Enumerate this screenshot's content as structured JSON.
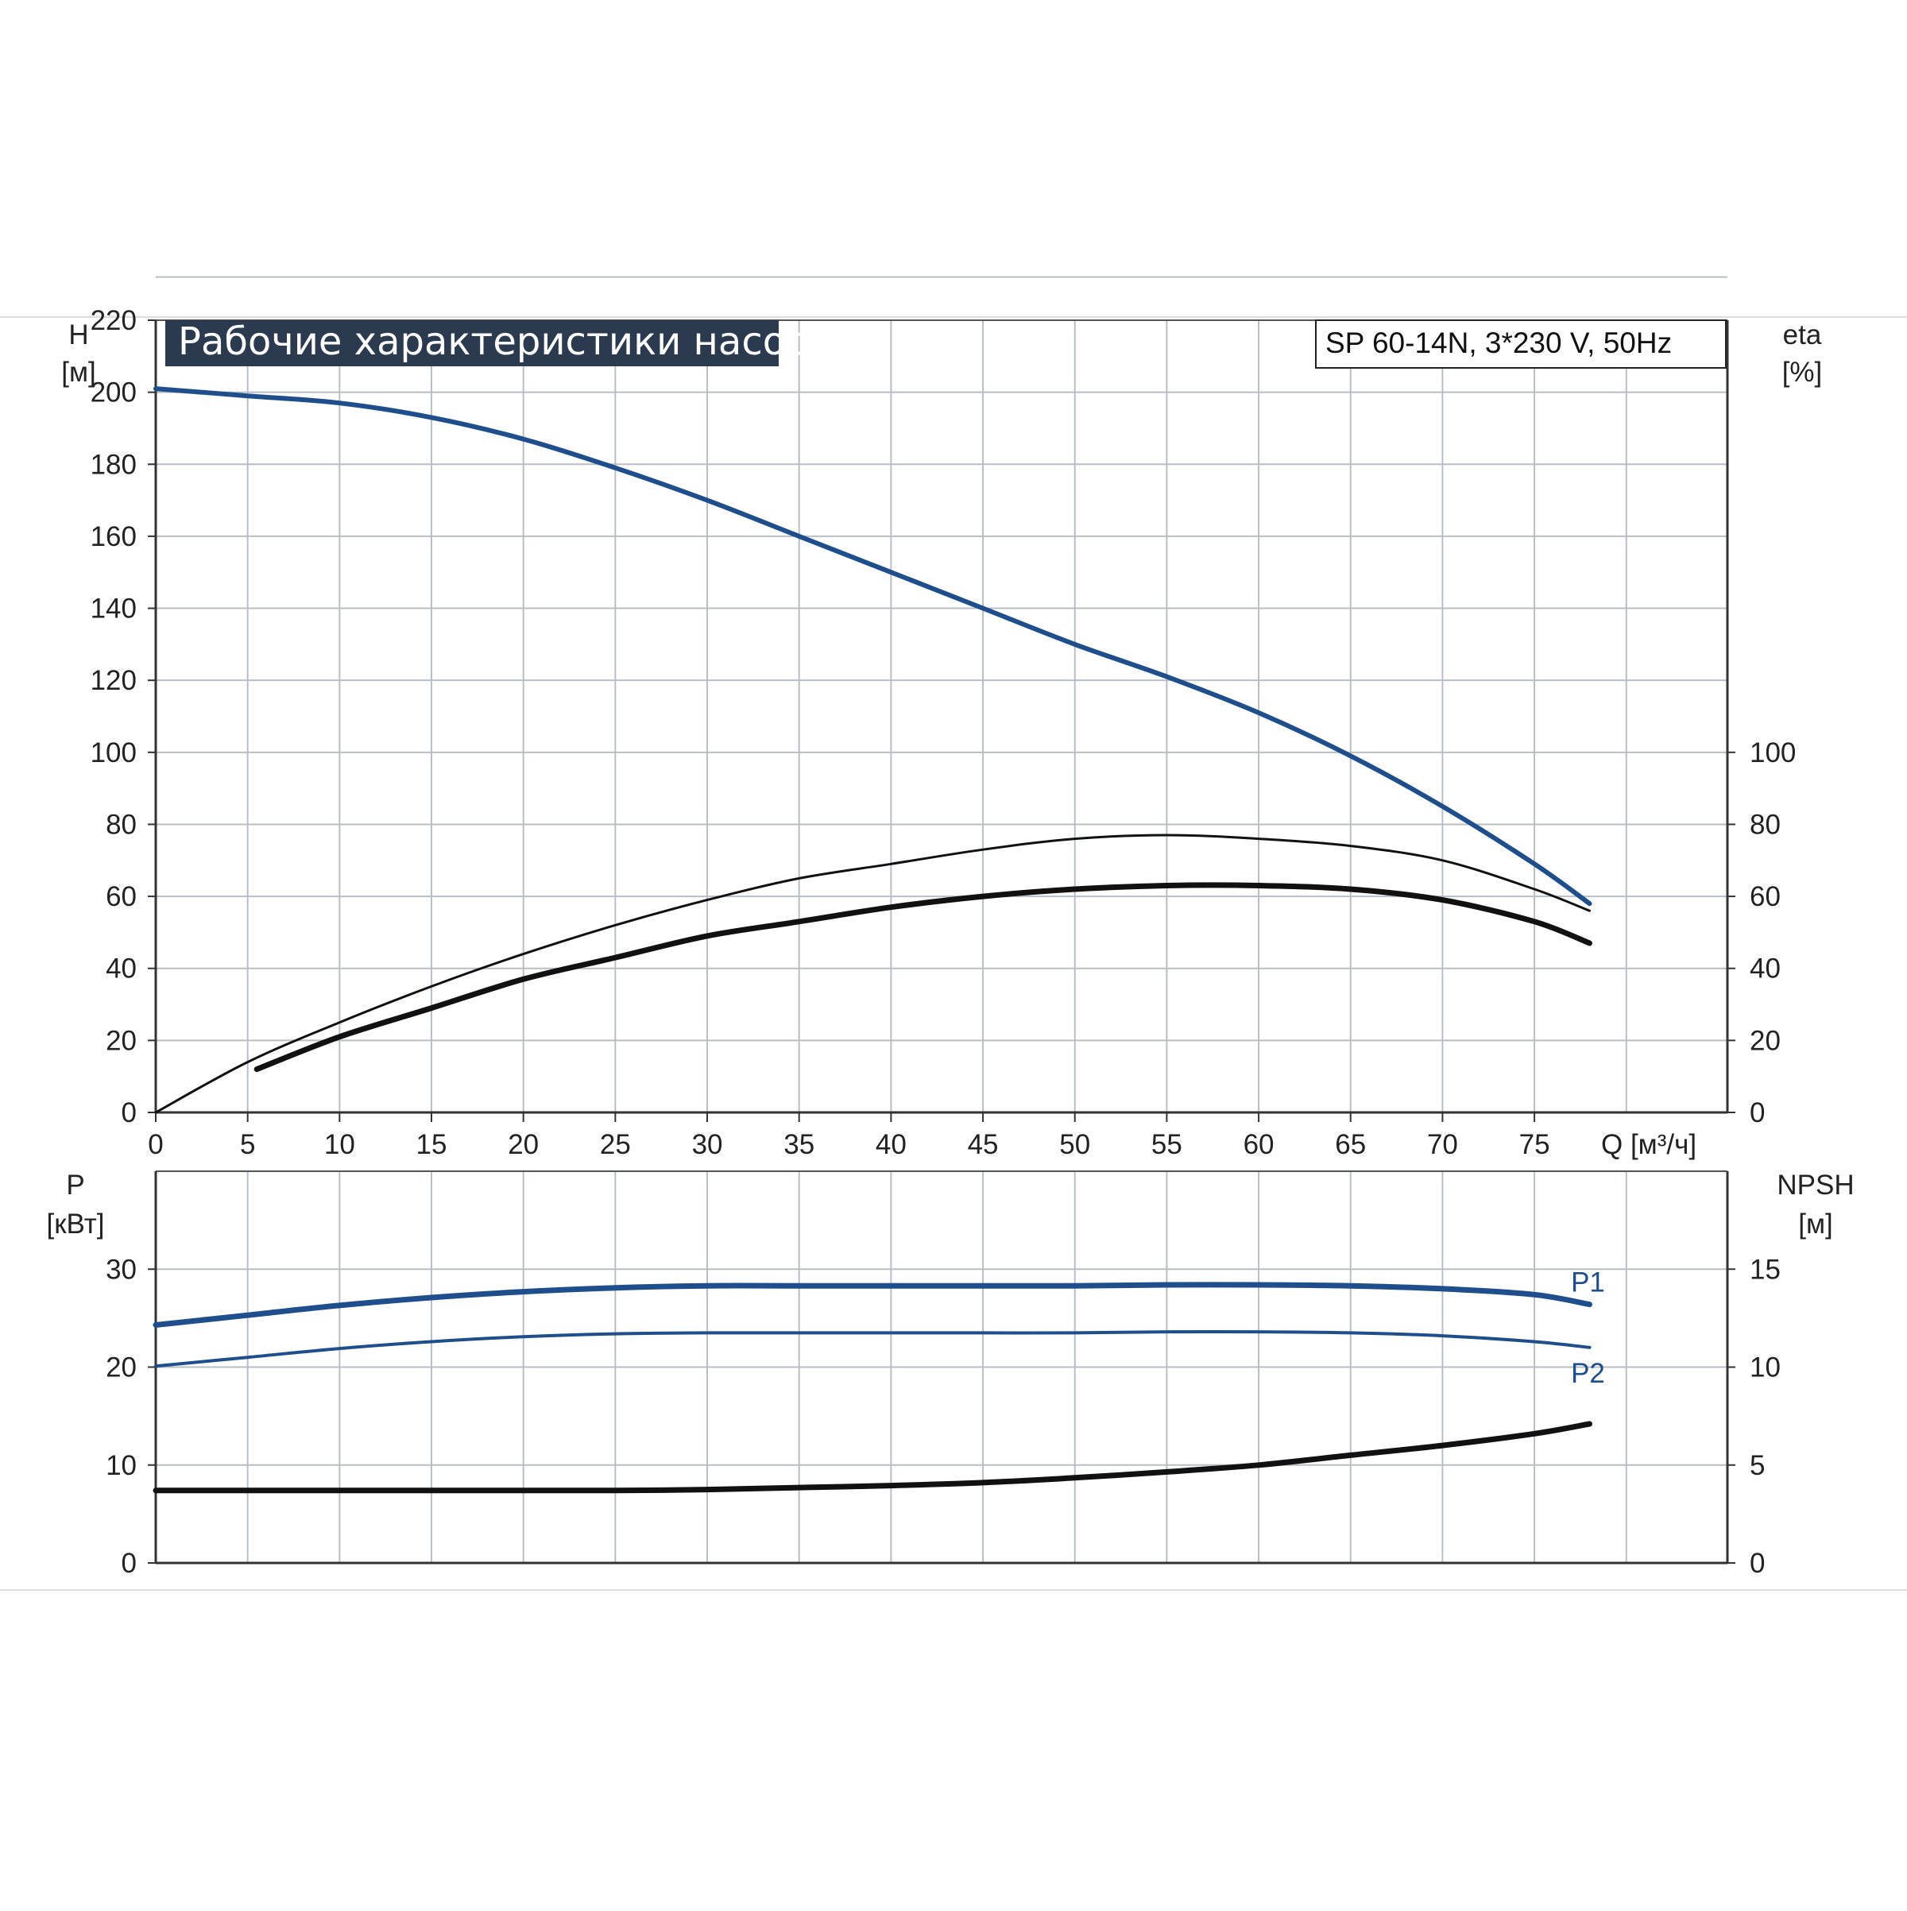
{
  "chart_data": {
    "type": "line",
    "title": "Рабочие характеристики насоса",
    "model": "SP 60-14N, 3*230 V, 50Hz",
    "xlabel": "Q [м³/ч]",
    "xlim": [
      0,
      85.5
    ],
    "x_ticks": [
      "0",
      "5",
      "10",
      "15",
      "20",
      "25",
      "30",
      "35",
      "40",
      "45",
      "50",
      "55",
      "60",
      "65",
      "70",
      "75"
    ],
    "grid": true,
    "colors": {
      "blue": "#1f4e8c",
      "black": "#111111",
      "title_bg": "#2b3a4e",
      "grid": "#b9bec6"
    },
    "top_panel": {
      "left_axis": {
        "label_line1": "H",
        "label_line2": "[м]",
        "ylim": [
          0,
          220
        ],
        "ticks": [
          "0",
          "20",
          "40",
          "60",
          "80",
          "100",
          "120",
          "140",
          "160",
          "180",
          "200",
          "220"
        ]
      },
      "right_axis": {
        "label_line1": "eta",
        "label_line2": "[%]",
        "ylim": [
          0,
          220
        ],
        "ticks": [
          "0",
          "20",
          "40",
          "60",
          "80",
          "100"
        ]
      },
      "series": [
        {
          "key": "head",
          "axis": "left",
          "color": "#1f4e8c",
          "x": [
            0,
            5,
            10,
            15,
            20,
            25,
            30,
            35,
            40,
            45,
            50,
            55,
            60,
            65,
            70,
            75,
            78
          ],
          "y": [
            201,
            199,
            197,
            193,
            187,
            179,
            170,
            160,
            150,
            140,
            130,
            121,
            111,
            99,
            85,
            69,
            58
          ]
        },
        {
          "key": "eta-thin",
          "axis": "right",
          "color": "#111111",
          "x": [
            0,
            5,
            10,
            15,
            20,
            25,
            30,
            35,
            40,
            45,
            50,
            55,
            60,
            65,
            70,
            75,
            78
          ],
          "y": [
            0,
            14,
            25,
            35,
            44,
            52,
            59,
            65,
            69,
            73,
            76,
            77,
            76,
            74,
            70,
            62,
            56
          ]
        },
        {
          "key": "eta-thick",
          "axis": "right",
          "color": "#111111",
          "x": [
            5.5,
            10,
            15,
            20,
            25,
            30,
            35,
            40,
            45,
            50,
            55,
            60,
            65,
            70,
            75,
            78
          ],
          "y": [
            12,
            21,
            29,
            37,
            43,
            49,
            53,
            57,
            60,
            62,
            63,
            63,
            62,
            59,
            53,
            47
          ]
        }
      ]
    },
    "bottom_panel": {
      "left_axis": {
        "label_line1": "P",
        "label_line2": "[кВт]",
        "ylim": [
          0,
          40
        ],
        "ticks": [
          "0",
          "10",
          "20",
          "30"
        ]
      },
      "right_axis": {
        "label_line1": "NPSH",
        "label_line2": "[м]",
        "ylim": [
          0,
          20
        ],
        "ticks": [
          "0",
          "5",
          "10",
          "15"
        ]
      },
      "series": [
        {
          "key": "P1",
          "name": "P1",
          "axis": "left",
          "color": "#1f4e8c",
          "x": [
            0,
            5,
            10,
            15,
            20,
            25,
            30,
            35,
            40,
            45,
            50,
            55,
            60,
            65,
            70,
            75,
            78
          ],
          "y": [
            24.3,
            25.3,
            26.3,
            27.1,
            27.7,
            28.1,
            28.3,
            28.3,
            28.3,
            28.3,
            28.3,
            28.4,
            28.4,
            28.3,
            28.0,
            27.4,
            26.4
          ]
        },
        {
          "key": "P2",
          "name": "P2",
          "axis": "left",
          "color": "#1f4e8c",
          "x": [
            0,
            5,
            10,
            15,
            20,
            25,
            30,
            35,
            40,
            45,
            50,
            55,
            60,
            65,
            70,
            75,
            78
          ],
          "y": [
            20.1,
            21.0,
            21.9,
            22.6,
            23.1,
            23.4,
            23.5,
            23.5,
            23.5,
            23.5,
            23.5,
            23.6,
            23.6,
            23.5,
            23.2,
            22.6,
            22.0
          ]
        },
        {
          "key": "npsh",
          "axis": "right",
          "color": "#111111",
          "x": [
            0,
            5,
            10,
            15,
            20,
            25,
            30,
            35,
            40,
            45,
            50,
            55,
            60,
            65,
            70,
            75,
            78
          ],
          "y": [
            3.7,
            3.7,
            3.7,
            3.7,
            3.7,
            3.7,
            3.75,
            3.85,
            3.95,
            4.1,
            4.35,
            4.65,
            5.0,
            5.5,
            6.0,
            6.6,
            7.1
          ]
        }
      ]
    }
  }
}
